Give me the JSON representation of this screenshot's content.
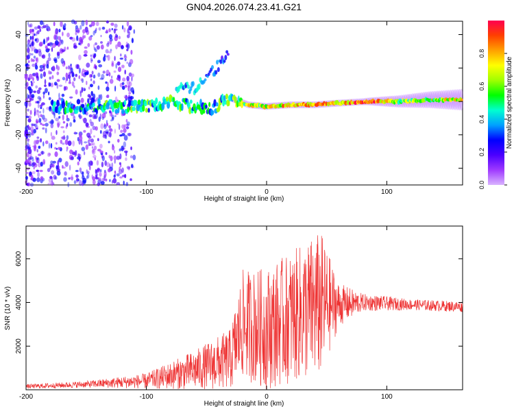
{
  "title": "GN04.2026.074.23.41.G21",
  "chart_data": [
    {
      "type": "heatmap",
      "title": "GN04.2026.074.23.41.G21",
      "xlabel": "Height of straight line (km)",
      "ylabel": "Frequency (Hz)",
      "xlim": [
        -200,
        163
      ],
      "ylim": [
        -50,
        48
      ],
      "xticks": [
        -200,
        -100,
        0,
        100
      ],
      "yticks": [
        -40,
        -20,
        0,
        20,
        40
      ],
      "colorbar": {
        "label": "Normalized spectral amplitude",
        "range": [
          0,
          1
        ],
        "ticks": [
          0.0,
          0.2,
          0.4,
          0.6,
          0.8
        ],
        "colormap": [
          "#d9b3ff",
          "#9f3aff",
          "#4b00ff",
          "#0000ff",
          "#00a0ff",
          "#00ffd0",
          "#00ff00",
          "#a0ff00",
          "#ffff00",
          "#ffa000",
          "#ff4000",
          "#ff0050"
        ]
      },
      "ridge": [
        {
          "x": -175,
          "f": -3,
          "amp": 0.35
        },
        {
          "x": -150,
          "f": -3,
          "amp": 0.4
        },
        {
          "x": -125,
          "f": -3,
          "amp": 0.45
        },
        {
          "x": -100,
          "f": -3,
          "amp": 0.45
        },
        {
          "x": -80,
          "f": -1,
          "amp": 0.5
        },
        {
          "x": -60,
          "f": -3,
          "amp": 0.45
        },
        {
          "x": -45,
          "f": -4,
          "amp": 0.4
        },
        {
          "x": -30,
          "f": 2,
          "amp": 0.55
        },
        {
          "x": -15,
          "f": -2,
          "amp": 0.6
        },
        {
          "x": 0,
          "f": -3,
          "amp": 0.65
        },
        {
          "x": 20,
          "f": -2,
          "amp": 0.75
        },
        {
          "x": 40,
          "f": -2,
          "amp": 0.8
        },
        {
          "x": 60,
          "f": -1,
          "amp": 0.7
        },
        {
          "x": 85,
          "f": 0,
          "amp": 0.95
        },
        {
          "x": 110,
          "f": 0,
          "amp": 0.6
        },
        {
          "x": 135,
          "f": 1,
          "amp": 0.6
        },
        {
          "x": 163,
          "f": 1,
          "amp": 0.75
        }
      ],
      "branch": [
        {
          "x": -60,
          "f": 8,
          "amp": 0.4
        },
        {
          "x": -45,
          "f": 18,
          "amp": 0.3
        },
        {
          "x": -32,
          "f": 28,
          "amp": 0.25
        }
      ]
    },
    {
      "type": "line",
      "xlabel": "Height of straight line (km)",
      "ylabel": "SNR (10 * v/v)",
      "xlim": [
        -200,
        163
      ],
      "ylim": [
        0,
        7500
      ],
      "xticks": [
        -200,
        -100,
        0,
        100
      ],
      "yticks": [
        2000,
        4000,
        6000
      ],
      "color": "#ee3333",
      "envelope": [
        {
          "x": -200,
          "mean": 150,
          "amp": 100
        },
        {
          "x": -150,
          "mean": 250,
          "amp": 150
        },
        {
          "x": -100,
          "mean": 400,
          "amp": 350
        },
        {
          "x": -60,
          "mean": 900,
          "amp": 900
        },
        {
          "x": -30,
          "mean": 1400,
          "amp": 1400
        },
        {
          "x": -20,
          "mean": 3000,
          "amp": 2500
        },
        {
          "x": 0,
          "mean": 2800,
          "amp": 2800
        },
        {
          "x": 20,
          "mean": 3300,
          "amp": 3000
        },
        {
          "x": 45,
          "mean": 3900,
          "amp": 3400
        },
        {
          "x": 60,
          "mean": 3900,
          "amp": 1000
        },
        {
          "x": 80,
          "mean": 4000,
          "amp": 400
        },
        {
          "x": 120,
          "mean": 3900,
          "amp": 250
        },
        {
          "x": 163,
          "mean": 3800,
          "amp": 250
        }
      ]
    }
  ]
}
